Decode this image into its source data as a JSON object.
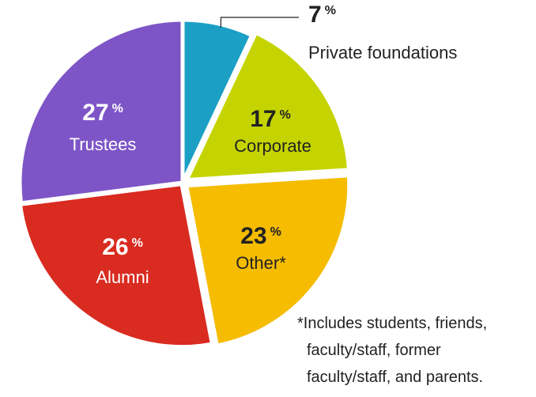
{
  "chart_data": {
    "type": "pie",
    "slices": [
      {
        "name": "Private foundations",
        "value": 7,
        "color": "#1c9fc4"
      },
      {
        "name": "Corporate",
        "value": 17,
        "color": "#c5d400"
      },
      {
        "name": "Other*",
        "value": 23,
        "color": "#f5bc00"
      },
      {
        "name": "Alumni",
        "value": 26,
        "color": "#d92b20"
      },
      {
        "name": "Trustees",
        "value": 27,
        "color": "#7e55c7"
      }
    ],
    "percent_symbol": "%",
    "start_angle_deg": 0,
    "direction": "clockwise",
    "note_lines": [
      "*Includes students, friends,",
      "faculty/staff, former",
      "faculty/staff, and parents."
    ]
  }
}
